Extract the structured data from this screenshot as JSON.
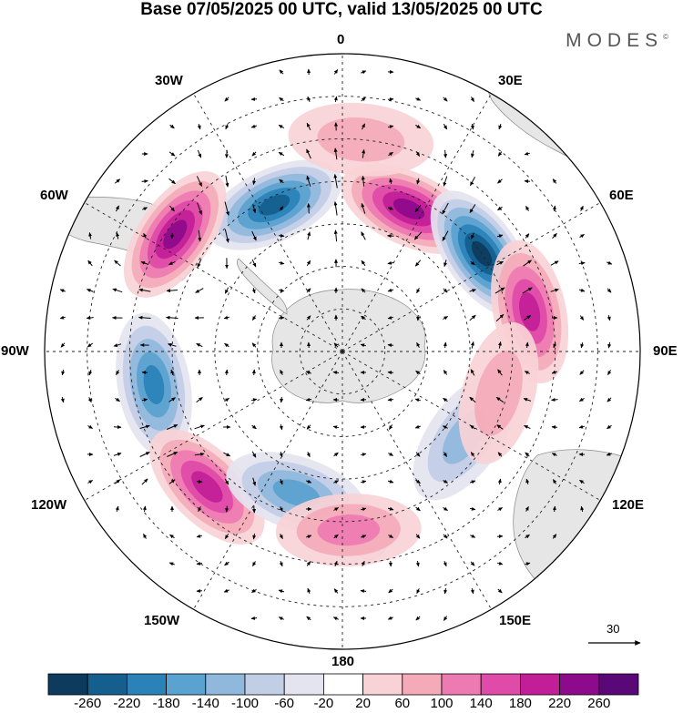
{
  "title": "Base 07/05/2025 00 UTC, valid 13/05/2025 00 UTC",
  "brand": "MODES",
  "brand_mark": "©",
  "longitude_labels": {
    "lon_0": "0",
    "lon_30e": "30E",
    "lon_60e": "60E",
    "lon_90e": "90E",
    "lon_120e": "120E",
    "lon_150e": "150E",
    "lon_180": "180",
    "lon_150w": "150W",
    "lon_120w": "120W",
    "lon_90w": "90W",
    "lon_60w": "60W",
    "lon_30w": "30W"
  },
  "reference_vector": {
    "label": "30"
  },
  "colorbar": {
    "labels": [
      "-260",
      "-220",
      "-180",
      "-140",
      "-100",
      "-60",
      "-20",
      "20",
      "60",
      "100",
      "140",
      "180",
      "220",
      "260"
    ],
    "colors": [
      "#0d3b5e",
      "#145f8e",
      "#2a82b8",
      "#5aa2cf",
      "#8fb8dc",
      "#c2cde6",
      "#e4e4f0",
      "#ffffff",
      "#f8d2d6",
      "#f4aab8",
      "#ee7ab2",
      "#e04aa8",
      "#c21e98",
      "#8e0a8c",
      "#5a0878"
    ]
  },
  "map_style": {
    "land_color": "#e6e6e6",
    "coast_color": "#888888",
    "grid_color": "#222222"
  },
  "anomaly_centers": [
    {
      "lat": -52,
      "lon": -25,
      "value": -220
    },
    {
      "lat": -53,
      "lon": 25,
      "value": 220
    },
    {
      "lat": -50,
      "lon": 55,
      "value": -260
    },
    {
      "lat": -45,
      "lon": 78,
      "value": 200
    },
    {
      "lat": -42,
      "lon": -55,
      "value": 220
    },
    {
      "lat": -45,
      "lon": -100,
      "value": -180
    },
    {
      "lat": -45,
      "lon": -135,
      "value": 200
    },
    {
      "lat": -55,
      "lon": -162,
      "value": -160
    },
    {
      "lat": -48,
      "lon": 178,
      "value": 120
    },
    {
      "lat": -55,
      "lon": 125,
      "value": -120
    },
    {
      "lat": -52,
      "lon": 105,
      "value": 80
    },
    {
      "lat": -40,
      "lon": 5,
      "value": 60
    }
  ]
}
